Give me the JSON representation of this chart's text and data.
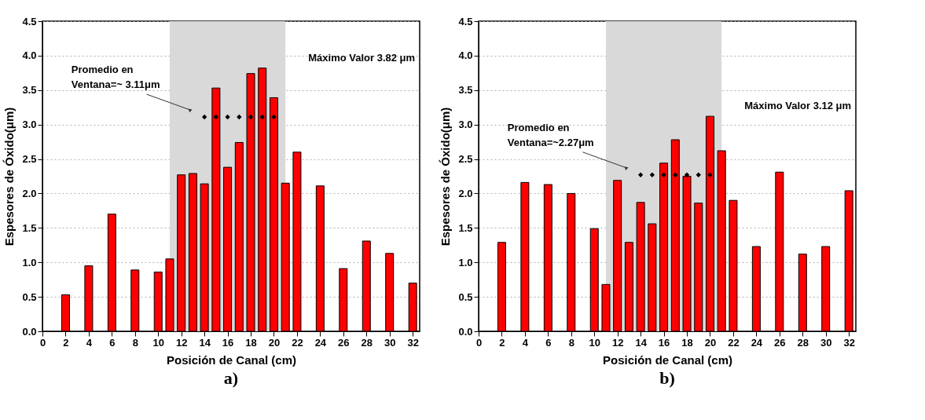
{
  "chart_data": [
    {
      "type": "bar",
      "title": "a)",
      "xlabel": "Posición de Canal (cm)",
      "ylabel": "Espesores de Óxido(μm)",
      "x": [
        2,
        4,
        6,
        8,
        10,
        11,
        12,
        13,
        14,
        15,
        16,
        17,
        18,
        19,
        20,
        21,
        22,
        24,
        26,
        28,
        30,
        32
      ],
      "series": [
        {
          "color": "#ff0000",
          "values": [
            0.53,
            0.95,
            1.7,
            0.89,
            0.86,
            1.05,
            2.27,
            2.29,
            2.14,
            3.53,
            2.38,
            2.74,
            3.74,
            3.82,
            3.39,
            2.15,
            2.6,
            2.11,
            0.91,
            1.31,
            1.13,
            0.7
          ]
        },
        {
          "type": "scatter",
          "color": "#000000",
          "marker": "diamond",
          "x": [
            14,
            15,
            16,
            17,
            18,
            19,
            20
          ],
          "values": [
            3.11,
            3.11,
            3.11,
            3.11,
            3.11,
            3.11,
            3.11
          ]
        }
      ],
      "bands": [
        {
          "axis": "x",
          "from": 11,
          "to": 21,
          "color": "#d9d9d9"
        }
      ],
      "annotations": [
        "Promedio en\nVentana=~ 3.11μm",
        "Máximo Valor 3.82 μm"
      ],
      "xlim": [
        0,
        32.6
      ],
      "xticks": [
        0,
        2,
        4,
        6,
        8,
        10,
        12,
        14,
        16,
        18,
        20,
        22,
        24,
        26,
        28,
        30,
        32
      ],
      "ylim": [
        0,
        4.5
      ],
      "yticks": [
        {
          "value": 0,
          "label": "0.0"
        },
        {
          "value": 0.5,
          "label": "0.5"
        },
        {
          "value": 1,
          "label": "1.0"
        },
        {
          "value": 1.5,
          "label": "1.5"
        },
        {
          "value": 2,
          "label": "2.0"
        },
        {
          "value": 2.5,
          "label": "2.5"
        },
        {
          "value": 3,
          "label": "3.0"
        },
        {
          "value": 3.5,
          "label": "3.5"
        },
        {
          "value": 4,
          "label": "4.0"
        },
        {
          "value": 4.5,
          "label": "4.5"
        }
      ],
      "grid": "y",
      "legend": false
    },
    {
      "type": "bar",
      "title": "b)",
      "xlabel": "Posición de Canal (cm)",
      "ylabel": "Espesores de Óxido(μm)",
      "x": [
        2,
        4,
        6,
        8,
        10,
        11,
        12,
        13,
        14,
        15,
        16,
        17,
        18,
        19,
        20,
        21,
        22,
        24,
        26,
        28,
        30,
        32
      ],
      "series": [
        {
          "color": "#ff0000",
          "values": [
            1.29,
            2.16,
            2.13,
            2.0,
            1.49,
            0.68,
            2.19,
            1.29,
            1.87,
            1.56,
            2.44,
            2.78,
            2.25,
            1.86,
            3.12,
            2.62,
            1.9,
            1.23,
            2.31,
            1.12,
            1.23,
            2.04
          ]
        },
        {
          "type": "scatter",
          "color": "#000000",
          "marker": "diamond",
          "x": [
            14,
            15,
            16,
            17,
            18,
            19,
            20
          ],
          "values": [
            2.27,
            2.27,
            2.27,
            2.27,
            2.27,
            2.27,
            2.27
          ]
        }
      ],
      "bands": [
        {
          "axis": "x",
          "from": 11,
          "to": 21,
          "color": "#d9d9d9"
        }
      ],
      "annotations": [
        "Promedio en\nVentana=~2.27μm",
        "Máximo Valor 3.12 μm"
      ],
      "xlim": [
        0,
        32.6
      ],
      "xticks": [
        0,
        2,
        4,
        6,
        8,
        10,
        12,
        14,
        16,
        18,
        20,
        22,
        24,
        26,
        28,
        30,
        32
      ],
      "ylim": [
        0,
        4.5
      ],
      "yticks": [
        {
          "value": 0,
          "label": "0.0"
        },
        {
          "value": 0.5,
          "label": "0.5"
        },
        {
          "value": 1,
          "label": "1.0"
        },
        {
          "value": 1.5,
          "label": "1.5"
        },
        {
          "value": 2,
          "label": "2.0"
        },
        {
          "value": 2.5,
          "label": "2.5"
        },
        {
          "value": 3,
          "label": "3.0"
        },
        {
          "value": 3.5,
          "label": "3.5"
        },
        {
          "value": 4,
          "label": "4.0"
        },
        {
          "value": 4.5,
          "label": "4.5"
        }
      ],
      "grid": "y",
      "legend": false
    }
  ]
}
